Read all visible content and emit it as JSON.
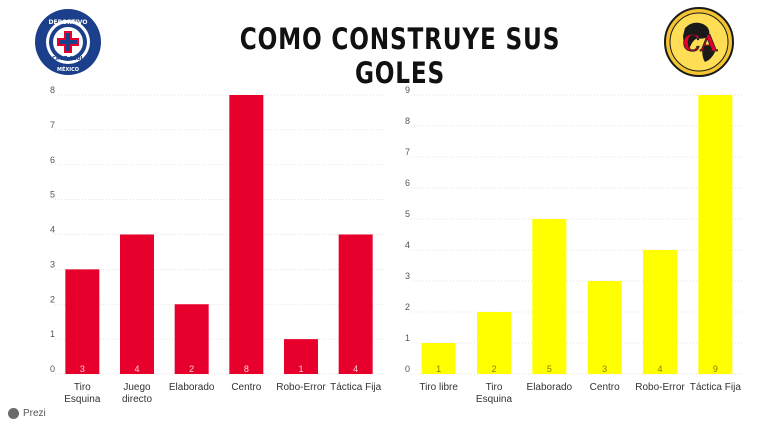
{
  "page": {
    "title": "COMO CONSTRUYE SUS GOLES",
    "watermark": "Prezi"
  },
  "logos": {
    "left": {
      "icon": "cruz-azul-logo",
      "text_top": "DEPORTIVO",
      "text_middle": "CRUZ AZUL",
      "text_bottom": "MÉXICO"
    },
    "right": {
      "icon": "club-america-logo",
      "text": "CA"
    }
  },
  "chart_data": [
    {
      "type": "bar",
      "color": "#e8002d",
      "categories": [
        "Tiro Esquina",
        "Juego directo",
        "Elaborado",
        "Centro",
        "Robo-Error",
        "Táctica Fija"
      ],
      "category_lines": [
        [
          "Tiro",
          "Esquina"
        ],
        [
          "Juego",
          "directo"
        ],
        [
          "Elaborado"
        ],
        [
          "Centro"
        ],
        [
          "Robo-Error"
        ],
        [
          "Táctica Fija"
        ]
      ],
      "values": [
        3,
        4,
        2,
        8,
        1,
        4
      ],
      "data_labels": [
        "3",
        "4",
        "2",
        "8",
        "1",
        "4"
      ],
      "ylim": [
        0,
        8
      ],
      "yticks": [
        "0",
        "1",
        "2",
        "3",
        "4",
        "5",
        "6",
        "7",
        "8"
      ],
      "grid": true,
      "xlabel": "",
      "ylabel": ""
    },
    {
      "type": "bar",
      "color": "#ffff00",
      "categories": [
        "Tiro libre",
        "Tiro Esquina",
        "Elaborado",
        "Centro",
        "Robo-Error",
        "Táctica Fija"
      ],
      "category_lines": [
        [
          "Tiro libre"
        ],
        [
          "Tiro",
          "Esquina"
        ],
        [
          "Elaborado"
        ],
        [
          "Centro"
        ],
        [
          "Robo-Error"
        ],
        [
          "Táctica Fija"
        ]
      ],
      "values": [
        1,
        2,
        5,
        3,
        4,
        9
      ],
      "data_labels": [
        "1",
        "2",
        "5",
        "3",
        "4",
        "9"
      ],
      "ylim": [
        0,
        9
      ],
      "yticks": [
        "0",
        "1",
        "2",
        "3",
        "4",
        "5",
        "6",
        "7",
        "8",
        "9"
      ],
      "grid": true,
      "xlabel": "",
      "ylabel": ""
    }
  ]
}
